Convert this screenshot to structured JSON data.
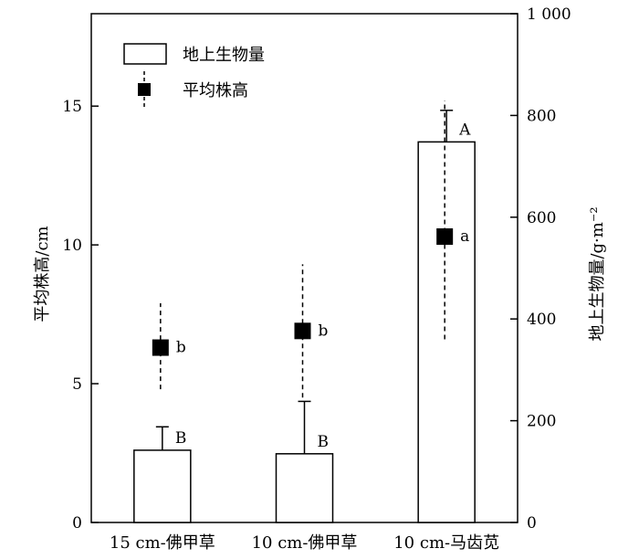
{
  "chart_data": {
    "type": "bar",
    "categories": [
      "15 cm-佛甲草",
      "10 cm-佛甲草",
      "10 cm-马齿苋"
    ],
    "bar_series": {
      "name": "地上生物量",
      "values": [
        142,
        135,
        748
      ],
      "error_upper": [
        188,
        238,
        810
      ],
      "letters": [
        "B",
        "B",
        "A"
      ]
    },
    "point_series": {
      "name": "平均株高",
      "values": [
        6.3,
        6.9,
        10.3
      ],
      "error_low": [
        4.8,
        4.5,
        6.6
      ],
      "error_high": [
        7.9,
        9.3,
        15.2
      ],
      "letters": [
        "b",
        "b",
        "a"
      ]
    },
    "y_left": {
      "label": "平均株高/cm",
      "lim": [
        0,
        18.33
      ],
      "ticks": [
        0,
        5,
        10,
        15
      ]
    },
    "y_right": {
      "label": "地上生物量/g·m⁻²",
      "lim": [
        0,
        1000
      ],
      "ticks": [
        0,
        200,
        400,
        600,
        800,
        1000
      ],
      "tick_labels": [
        "0",
        "200",
        "400",
        "600",
        "800",
        "1 000"
      ]
    },
    "legend": {
      "position": "top-left"
    },
    "grid": false
  }
}
